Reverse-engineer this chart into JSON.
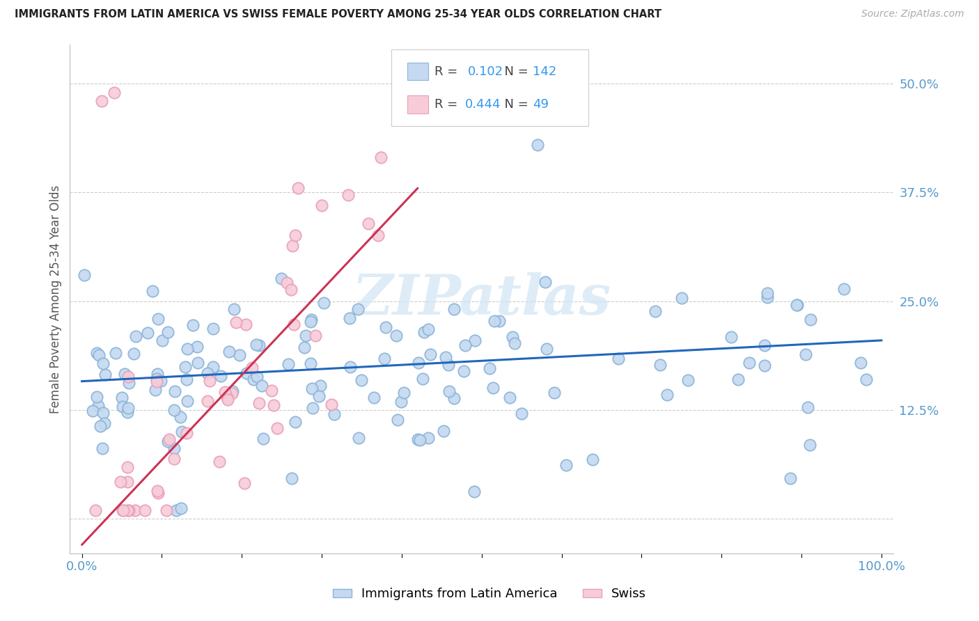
{
  "title": "IMMIGRANTS FROM LATIN AMERICA VS SWISS FEMALE POVERTY AMONG 25-34 YEAR OLDS CORRELATION CHART",
  "source": "Source: ZipAtlas.com",
  "ylabel": "Female Poverty Among 25-34 Year Olds",
  "yticks": [
    0.0,
    0.125,
    0.25,
    0.375,
    0.5
  ],
  "ytick_labels": [
    "",
    "12.5%",
    "25.0%",
    "37.5%",
    "50.0%"
  ],
  "legend_blue_r": "0.102",
  "legend_blue_n": "142",
  "legend_pink_r": "0.444",
  "legend_pink_n": "49",
  "legend_label_blue": "Immigrants from Latin America",
  "legend_label_pink": "Swiss",
  "blue_fill_color": "#c5d9f0",
  "pink_fill_color": "#f7ccd8",
  "blue_edge_color": "#8ab4d8",
  "pink_edge_color": "#e8a0b8",
  "blue_line_color": "#2266bb",
  "pink_line_color": "#cc3355",
  "watermark_color": "#d0e4f5",
  "background_color": "#ffffff",
  "grid_color": "#cccccc",
  "title_color": "#222222",
  "source_color": "#aaaaaa",
  "tick_color": "#5599cc",
  "ylabel_color": "#555555",
  "xlim": [
    -0.015,
    1.015
  ],
  "ylim": [
    -0.04,
    0.545
  ],
  "blue_line_x0": 0.0,
  "blue_line_y0": 0.158,
  "blue_line_x1": 1.0,
  "blue_line_y1": 0.205,
  "pink_line_x0": 0.0,
  "pink_line_y0": -0.03,
  "pink_line_x1": 0.42,
  "pink_line_y1": 0.38
}
